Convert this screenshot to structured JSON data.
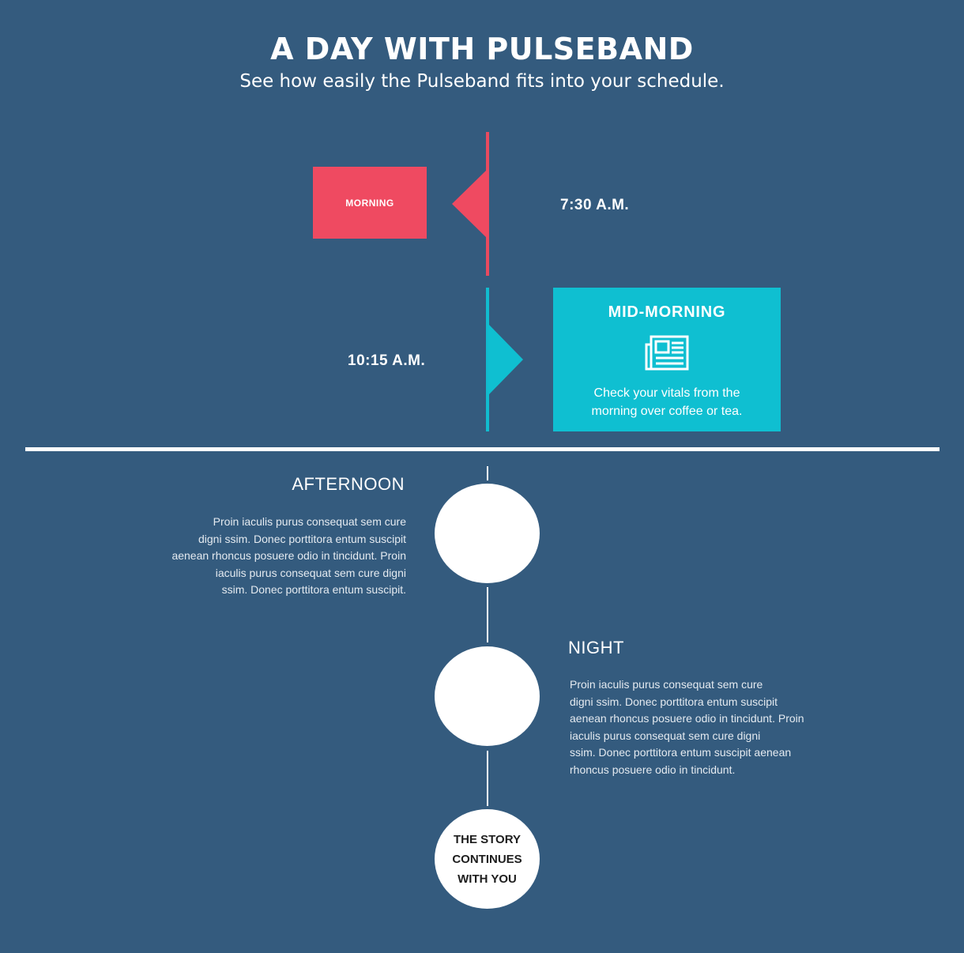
{
  "header": {
    "title": "A DAY WITH PULSEBAND",
    "subtitle": "See how easily the Pulseband fits into your schedule."
  },
  "timeline": {
    "morning": {
      "label": "MORNING",
      "time": "7:30 A.M."
    },
    "mid_morning": {
      "label": "MID-MORNING",
      "time": "10:15 A.M.",
      "icon": "newspaper-icon",
      "text_line1": "Check your vitals from the",
      "text_line2": "morning over coffee or tea."
    },
    "afternoon": {
      "heading": "AFTERNOON",
      "lines": [
        "Proin iaculis purus consequat sem cure",
        "digni ssim. Donec porttitora entum suscipit",
        "aenean rhoncus posuere odio in tincidunt. Proin",
        "iaculis purus consequat sem cure digni",
        "ssim. Donec porttitora entum suscipit."
      ]
    },
    "night": {
      "heading": "NIGHT",
      "lines": [
        "Proin iaculis purus consequat sem cure",
        "digni ssim. Donec porttitora entum suscipit",
        "aenean rhoncus posuere odio in tincidunt. Proin",
        "iaculis purus consequat sem cure digni",
        "ssim. Donec porttitora entum suscipit aenean",
        "rhoncus posuere odio in tincidunt."
      ]
    },
    "ending": {
      "line1": "THE STORY",
      "line2": "CONTINUES",
      "line3": "WITH YOU"
    }
  },
  "colors": {
    "background": "#345b7e",
    "morning": "#ef4a61",
    "mid_morning": "#0fbfd1",
    "text": "#ffffff"
  }
}
